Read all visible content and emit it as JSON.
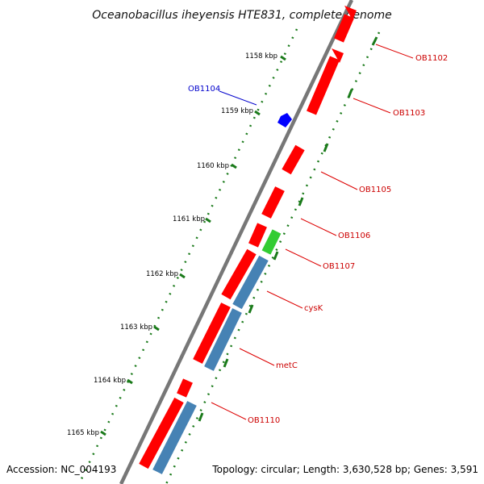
{
  "title": "Oceanobacillus iheyensis HTE831, complete genome",
  "accession": "Accession: NC_004193",
  "topology": "Topology: circular; Length: 3,630,528 bp; Genes: 3,591",
  "colors": {
    "forward_cds": "#ff0000",
    "reverse_cds": "#0000ff",
    "rna": "#33cc33",
    "other": "#4682b4",
    "backbone": "#777777",
    "scale": "#1a7a1a"
  },
  "ticks": [
    {
      "label": "1158 kbp"
    },
    {
      "label": "1159 kbp"
    },
    {
      "label": "1160 kbp"
    },
    {
      "label": "1161 kbp"
    },
    {
      "label": "1162 kbp"
    },
    {
      "label": "1163 kbp"
    },
    {
      "label": "1164 kbp"
    },
    {
      "label": "1165 kbp"
    }
  ],
  "gene_labels": [
    {
      "text": "OB1102",
      "color": "#cc0000"
    },
    {
      "text": "OB1103",
      "color": "#cc0000"
    },
    {
      "text": "OB1104",
      "color": "#0000cc"
    },
    {
      "text": "OB1105",
      "color": "#cc0000"
    },
    {
      "text": "OB1106",
      "color": "#cc0000"
    },
    {
      "text": "OB1107",
      "color": "#cc0000"
    },
    {
      "text": "cysK",
      "color": "#cc0000"
    },
    {
      "text": "metC",
      "color": "#cc0000"
    },
    {
      "text": "OB1110",
      "color": "#cc0000"
    }
  ]
}
